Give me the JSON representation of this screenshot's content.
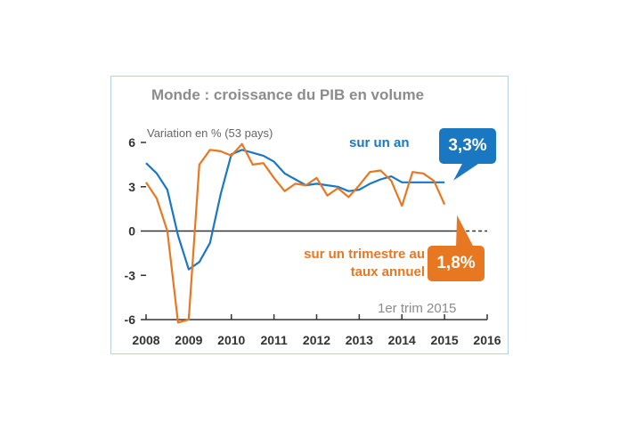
{
  "chart_data": {
    "type": "line",
    "title": "Monde : croissance du PIB en volume",
    "ylabel": "Variation en % (53 pays)",
    "xlim": [
      2008,
      2016
    ],
    "ylim": [
      -6,
      6
    ],
    "y_ticks": [
      6,
      3,
      0,
      -3,
      -6
    ],
    "y_tick_labels": [
      "6",
      "3",
      "0",
      "-3",
      "-6"
    ],
    "x_ticks": [
      2008,
      2009,
      2010,
      2011,
      2012,
      2013,
      2014,
      2015,
      2016
    ],
    "x_tick_labels": [
      "2008",
      "2009",
      "2010",
      "2011",
      "2012",
      "2013",
      "2014",
      "2015",
      "2016"
    ],
    "grid": false,
    "series": [
      {
        "name": "sur un an",
        "color": "#1a78c2",
        "callout": "3,3%",
        "x": [
          2008.0,
          2008.25,
          2008.5,
          2008.75,
          2009.0,
          2009.25,
          2009.5,
          2009.75,
          2010.0,
          2010.25,
          2010.5,
          2010.75,
          2011.0,
          2011.25,
          2011.5,
          2011.75,
          2012.0,
          2012.25,
          2012.5,
          2012.75,
          2013.0,
          2013.25,
          2013.5,
          2013.75,
          2014.0,
          2014.25,
          2014.5,
          2014.75,
          2015.0
        ],
        "y": [
          4.6,
          3.9,
          2.8,
          -0.3,
          -2.6,
          -2.1,
          -0.8,
          2.5,
          5.2,
          5.5,
          5.3,
          5.1,
          4.7,
          3.9,
          3.5,
          3.1,
          3.2,
          3.1,
          3.0,
          2.7,
          2.8,
          3.2,
          3.5,
          3.7,
          3.3,
          3.3,
          3.3,
          3.3,
          3.3
        ]
      },
      {
        "name": "sur un trimestre au taux annuel",
        "color": "#e87722",
        "callout": "1,8%",
        "x": [
          2008.0,
          2008.25,
          2008.5,
          2008.75,
          2009.0,
          2009.25,
          2009.5,
          2009.75,
          2010.0,
          2010.25,
          2010.5,
          2010.75,
          2011.0,
          2011.25,
          2011.5,
          2011.75,
          2012.0,
          2012.25,
          2012.5,
          2012.75,
          2013.0,
          2013.25,
          2013.5,
          2013.75,
          2014.0,
          2014.25,
          2014.5,
          2014.75,
          2015.0
        ],
        "y": [
          3.3,
          2.2,
          0.0,
          -6.2,
          -6.0,
          4.5,
          5.5,
          5.4,
          5.1,
          5.9,
          4.5,
          4.6,
          3.6,
          2.7,
          3.2,
          3.1,
          3.6,
          2.4,
          2.9,
          2.3,
          3.1,
          4.0,
          4.1,
          3.4,
          1.7,
          4.0,
          3.9,
          3.4,
          1.8
        ]
      }
    ],
    "annotation": "1er trim 2015"
  }
}
